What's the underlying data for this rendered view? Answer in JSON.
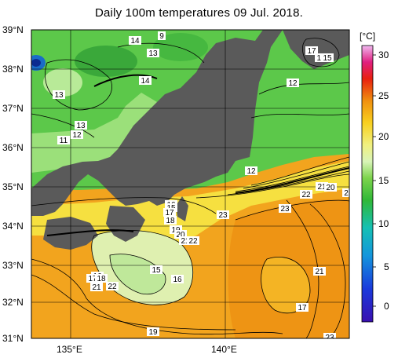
{
  "title": "Daily 100m temperatures 09 Jul. 2018.",
  "colorbar": {
    "unit": "[°C]",
    "ticks": [
      "30",
      "25",
      "20",
      "15",
      "10",
      "5",
      "0"
    ]
  },
  "axes": {
    "lat_labels": [
      "39°N",
      "38°N",
      "37°N",
      "36°N",
      "35°N",
      "34°N",
      "33°N",
      "32°N",
      "31°N"
    ],
    "lon_labels": [
      "135°E",
      "140°E"
    ]
  },
  "isotherm_labels": [
    "14",
    "9",
    "13",
    "17",
    "16",
    "15",
    "13",
    "14",
    "12",
    "12",
    "13",
    "11",
    "12",
    "21",
    "20",
    "22",
    "2",
    "23",
    "16",
    "15",
    "17",
    "18",
    "19",
    "20",
    "21",
    "22",
    "23",
    "15",
    "16",
    "21",
    "16",
    "17",
    "18",
    "21",
    "22",
    "17",
    "19",
    "23",
    "20"
  ],
  "colors": {
    "land": "#5a5a5a",
    "cold": "#36b33c",
    "mid": "#d2f0b4",
    "warm": "#f0a018",
    "hot": "#e08010"
  }
}
